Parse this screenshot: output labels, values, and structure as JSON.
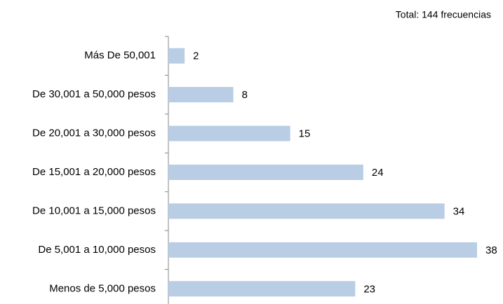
{
  "chart_data": {
    "type": "bar",
    "orientation": "horizontal",
    "subtitle": "Total: 144 frecuencias",
    "categories": [
      "Más De 50,001",
      "De 30,001 a 50,000 pesos",
      "De 20,001 a 30,000 pesos",
      "De 15,001 a 20,000 pesos",
      "De 10,001 a 15,000 pesos",
      "De 5,001 a 10,000 pesos",
      "Menos de 5,000 pesos"
    ],
    "values": [
      2,
      8,
      15,
      24,
      34,
      38,
      23
    ],
    "color": "#b9cde5"
  }
}
